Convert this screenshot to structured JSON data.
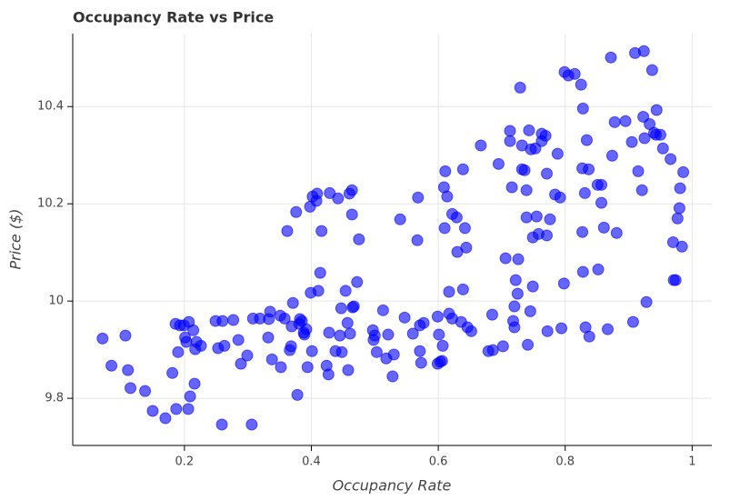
{
  "chart_data": {
    "type": "scatter",
    "title": "Occupancy Rate vs Price",
    "xlabel": "Occupancy Rate",
    "ylabel": "Price ($)",
    "x": [
      0.071,
      0.085,
      0.107,
      0.111,
      0.115,
      0.138,
      0.15,
      0.17,
      0.181,
      0.186,
      0.187,
      0.19,
      0.193,
      0.199,
      0.201,
      0.203,
      0.206,
      0.207,
      0.209,
      0.214,
      0.216,
      0.217,
      0.219,
      0.226,
      0.249,
      0.253,
      0.259,
      0.26,
      0.263,
      0.277,
      0.285,
      0.289,
      0.299,
      0.306,
      0.308,
      0.319,
      0.332,
      0.333,
      0.335,
      0.338,
      0.351,
      0.352,
      0.358,
      0.362,
      0.366,
      0.368,
      0.369,
      0.371,
      0.376,
      0.378,
      0.381,
      0.382,
      0.385,
      0.388,
      0.389,
      0.392,
      0.394,
      0.398,
      0.399,
      0.401,
      0.402,
      0.408,
      0.409,
      0.411,
      0.414,
      0.416,
      0.424,
      0.427,
      0.428,
      0.429,
      0.438,
      0.442,
      0.445,
      0.447,
      0.448,
      0.454,
      0.457,
      0.458,
      0.46,
      0.461,
      0.464,
      0.464,
      0.465,
      0.467,
      0.472,
      0.475,
      0.497,
      0.498,
      0.5,
      0.503,
      0.513,
      0.518,
      0.521,
      0.528,
      0.53,
      0.54,
      0.547,
      0.56,
      0.567,
      0.568,
      0.571,
      0.571,
      0.573,
      0.577,
      0.599,
      0.599,
      0.601,
      0.603,
      0.606,
      0.607,
      0.609,
      0.61,
      0.611,
      0.614,
      0.617,
      0.617,
      0.622,
      0.622,
      0.629,
      0.63,
      0.636,
      0.639,
      0.639,
      0.642,
      0.644,
      0.646,
      0.652,
      0.667,
      0.679,
      0.685,
      0.686,
      0.695,
      0.702,
      0.706,
      0.713,
      0.713,
      0.716,
      0.718,
      0.72,
      0.72,
      0.725,
      0.722,
      0.726,
      0.729,
      0.732,
      0.732,
      0.736,
      0.739,
      0.739,
      0.741,
      0.743,
      0.745,
      0.746,
      0.749,
      0.749,
      0.753,
      0.755,
      0.758,
      0.763,
      0.763,
      0.769,
      0.771,
      0.771,
      0.772,
      0.776,
      0.784,
      0.788,
      0.792,
      0.794,
      0.798,
      0.799,
      0.805,
      0.815,
      0.825,
      0.827,
      0.827,
      0.828,
      0.828,
      0.831,
      0.832,
      0.834,
      0.837,
      0.838,
      0.851,
      0.852,
      0.857,
      0.857,
      0.861,
      0.867,
      0.872,
      0.874,
      0.878,
      0.881,
      0.895,
      0.905,
      0.907,
      0.91,
      0.915,
      0.921,
      0.923,
      0.924,
      0.925,
      0.928,
      0.933,
      0.937,
      0.94,
      0.943,
      0.944,
      0.95,
      0.954,
      0.966,
      0.97,
      0.971,
      0.974,
      0.977,
      0.98,
      0.981,
      0.984,
      0.986
    ],
    "values": [
      9.923,
      9.867,
      9.929,
      9.858,
      9.821,
      9.815,
      9.774,
      9.759,
      9.852,
      9.953,
      9.778,
      9.895,
      9.95,
      9.95,
      9.925,
      9.916,
      9.778,
      9.957,
      9.804,
      9.94,
      9.83,
      9.901,
      9.916,
      9.908,
      9.959,
      9.903,
      9.746,
      9.959,
      9.908,
      9.961,
      9.92,
      9.871,
      9.888,
      9.746,
      9.964,
      9.964,
      9.925,
      9.963,
      9.978,
      9.88,
      9.97,
      9.864,
      9.964,
      10.144,
      9.899,
      9.907,
      9.948,
      9.996,
      10.183,
      9.807,
      9.953,
      9.963,
      9.959,
      9.935,
      9.931,
      9.942,
      9.864,
      10.194,
      10.017,
      9.897,
      10.215,
      10.206,
      10.221,
      10.021,
      10.058,
      10.144,
      9.867,
      9.849,
      9.935,
      10.222,
      9.897,
      10.211,
      9.929,
      9.985,
      9.895,
      10.021,
      9.955,
      9.858,
      10.221,
      9.933,
      10.228,
      10.178,
      9.987,
      9.989,
      10.039,
      10.127,
      9.94,
      9.92,
      9.929,
      9.895,
      9.981,
      9.882,
      9.931,
      9.845,
      9.89,
      10.168,
      9.966,
      9.933,
      10.125,
      10.213,
      9.95,
      9.897,
      9.873,
      9.955,
      9.871,
      9.968,
      9.931,
      9.875,
      9.877,
      9.908,
      10.234,
      10.15,
      10.267,
      10.215,
      10.019,
      9.974,
      9.964,
      10.179,
      10.172,
      10.101,
      9.957,
      10.024,
      10.271,
      10.15,
      10.11,
      9.946,
      9.938,
      10.32,
      9.897,
      9.972,
      9.899,
      10.282,
      9.907,
      10.088,
      10.329,
      10.35,
      10.234,
      9.959,
      9.946,
      9.989,
      10.015,
      10.043,
      10.086,
      10.439,
      10.32,
      10.271,
      10.269,
      10.228,
      10.172,
      9.91,
      10.351,
      9.979,
      10.312,
      10.03,
      10.131,
      10.314,
      10.174,
      10.138,
      10.329,
      10.344,
      10.34,
      10.135,
      10.262,
      9.938,
      10.168,
      10.219,
      10.303,
      10.213,
      9.944,
      10.036,
      10.471,
      10.464,
      10.467,
      10.445,
      10.142,
      10.273,
      10.06,
      10.396,
      10.222,
      9.946,
      10.331,
      10.271,
      9.927,
      10.239,
      10.065,
      10.202,
      10.239,
      10.151,
      9.942,
      10.501,
      10.299,
      10.368,
      10.14,
      10.37,
      10.327,
      9.957,
      10.51,
      10.267,
      10.228,
      10.379,
      10.514,
      10.335,
      9.998,
      10.364,
      10.475,
      10.346,
      10.342,
      10.393,
      10.342,
      10.314,
      10.292,
      10.121,
      10.043,
      10.043,
      10.17,
      10.191,
      10.232,
      10.112,
      10.265
    ],
    "color": "#0000ff",
    "opacity": 0.6,
    "xlim": [
      0.024,
      1.031
    ],
    "ylim": [
      9.703,
      10.55
    ],
    "xticks": [
      0.2,
      0.4,
      0.6,
      0.8,
      1
    ],
    "yticks": [
      9.8,
      10,
      10.2,
      10.4
    ],
    "grid": true
  }
}
